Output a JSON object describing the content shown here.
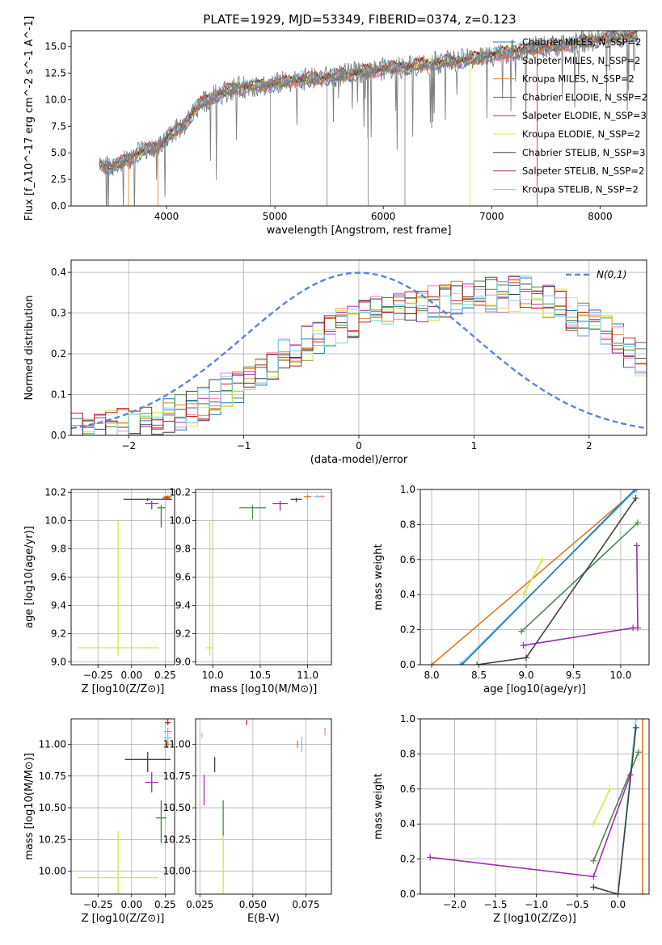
{
  "figure": {
    "title": "PLATE=1929, MJD=53349, FIBERID=0374, z=0.123"
  },
  "chart_data": [
    {
      "id": "spectrum",
      "type": "line",
      "xlabel": "wavelength [Angstrom, rest frame]",
      "ylabel": "Flux [f_λ10^-17 erg cm^-2 s^-1 A^-1]",
      "xlim": [
        3120,
        8430
      ],
      "ylim": [
        0,
        16.5
      ],
      "xticks": [
        4000,
        5000,
        6000,
        7000,
        8000
      ],
      "yticks": [
        0.0,
        2.5,
        5.0,
        7.5,
        10.0,
        12.5,
        15.0
      ],
      "grid": false,
      "legend_position": "top-right",
      "data_color": "#808080",
      "legend": [
        {
          "label": "Chabrier MILES, N_SSP=2",
          "color": "#1f77b4"
        },
        {
          "label": "Salpeter MILES, N_SSP=2",
          "color": "#ff7fbf"
        },
        {
          "label": "Kroupa MILES, N_SSP=2",
          "color": "#e07b1f"
        },
        {
          "label": "Chabrier ELODIE, N_SSP=2",
          "color": "#4a8a4a"
        },
        {
          "label": "Salpeter ELODIE, N_SSP=3",
          "color": "#9b30b0"
        },
        {
          "label": "Kroupa ELODIE, N_SSP=2",
          "color": "#d4e84a"
        },
        {
          "label": "Chabrier STELIB, N_SSP=3",
          "color": "#404040"
        },
        {
          "label": "Salpeter STELIB, N_SSP=2",
          "color": "#c0201f"
        },
        {
          "label": "Kroupa STELIB, N_SSP=2",
          "color": "#76d0e0"
        }
      ],
      "series_anchors": {
        "x": [
          3380,
          3500,
          3650,
          3800,
          3950,
          4050,
          4150,
          4300,
          4450,
          4600,
          4800,
          5000,
          5200,
          5400,
          5600,
          5800,
          6000,
          6200,
          6400,
          6600,
          6800,
          7000,
          7200,
          7400,
          7600,
          7800,
          8000,
          8200
        ],
        "y": [
          4.0,
          3.6,
          4.5,
          5.2,
          5.8,
          6.9,
          7.5,
          9.5,
          10.4,
          11.0,
          11.3,
          11.5,
          11.9,
          12.0,
          12.3,
          12.6,
          12.9,
          13.1,
          13.4,
          13.6,
          13.8,
          14.2,
          14.6,
          14.9,
          15.1,
          15.4,
          15.7,
          16.0
        ]
      }
    },
    {
      "id": "residuals",
      "type": "line",
      "xlabel": "(data-model)/error",
      "ylabel": "Normed distribution",
      "xlim": [
        -2.5,
        2.5
      ],
      "ylim": [
        0,
        0.43
      ],
      "xticks": [
        -2,
        -1,
        0,
        1,
        2
      ],
      "yticks": [
        0.0,
        0.1,
        0.2,
        0.3,
        0.4
      ],
      "grid": true,
      "legend_position": "top-right",
      "gaussian_label": "N(0,1)",
      "gaussian_color": "#5b86d6",
      "hist_anchors": {
        "x": [
          -2.5,
          -2.0,
          -1.5,
          -1.0,
          -0.5,
          0.0,
          0.5,
          1.0,
          1.5,
          2.0,
          2.5
        ],
        "y": [
          0.01,
          0.025,
          0.06,
          0.13,
          0.22,
          0.29,
          0.32,
          0.34,
          0.35,
          0.28,
          0.18
        ]
      }
    },
    {
      "id": "age-vs-Z",
      "type": "scatter",
      "xlabel": "Z [log10(Z/Z⊙)]",
      "ylabel": "age  [log10(age/yr)]",
      "xlim": [
        -0.45,
        0.32
      ],
      "ylim": [
        8.98,
        10.22
      ],
      "xticks": [
        -0.25,
        0.0,
        0.25
      ],
      "yticks": [
        9.0,
        9.2,
        9.4,
        9.6,
        9.8,
        10.0,
        10.2
      ],
      "grid": true,
      "points": [
        {
          "x": -0.1,
          "y": 9.1,
          "xerr": 0.3,
          "yerr_lo": 0.06,
          "yerr_hi": 0.9,
          "color": "#d4e84a"
        },
        {
          "x": 0.15,
          "y": 10.12,
          "xerr": 0.05,
          "yerr_lo": 0.04,
          "yerr_hi": 0.02,
          "color": "#9b30b0"
        },
        {
          "x": 0.22,
          "y": 10.09,
          "xerr": 0.03,
          "yerr_lo": 0.14,
          "yerr_hi": 0.02,
          "color": "#4a8a4a"
        },
        {
          "x": 0.12,
          "y": 10.15,
          "xerr": 0.18,
          "yerr_lo": 0.01,
          "yerr_hi": 0.01,
          "color": "#404040"
        },
        {
          "x": 0.27,
          "y": 10.17,
          "xerr": 0.03,
          "yerr_lo": 0.02,
          "yerr_hi": 0.01,
          "color": "#e07b1f"
        },
        {
          "x": 0.26,
          "y": 10.16,
          "xerr": 0.03,
          "yerr_lo": 0.01,
          "yerr_hi": 0.01,
          "color": "#c0201f"
        }
      ]
    },
    {
      "id": "age-vs-mass",
      "type": "scatter",
      "xlabel": "mass [log10(M/M⊙)]",
      "ylabel": "",
      "xlim": [
        9.82,
        11.25
      ],
      "ylim": [
        8.98,
        10.22
      ],
      "xticks": [
        10.0,
        10.5,
        11.0
      ],
      "yticks": [
        9.0,
        9.2,
        9.4,
        9.6,
        9.8,
        10.0,
        10.2
      ],
      "grid": true,
      "points": [
        {
          "x": 9.97,
          "y": 9.1,
          "xerr": 0.04,
          "yerr_lo": 0.06,
          "yerr_hi": 0.9,
          "color": "#d4e84a"
        },
        {
          "x": 10.42,
          "y": 10.09,
          "xerr": 0.14,
          "yerr_lo": 0.08,
          "yerr_hi": 0.02,
          "color": "#4a8a4a"
        },
        {
          "x": 10.71,
          "y": 10.12,
          "xerr": 0.08,
          "yerr_lo": 0.05,
          "yerr_hi": 0.02,
          "color": "#9b30b0"
        },
        {
          "x": 10.88,
          "y": 10.15,
          "xerr": 0.06,
          "yerr_lo": 0.02,
          "yerr_hi": 0.01,
          "color": "#404040"
        },
        {
          "x": 11.0,
          "y": 10.17,
          "xerr": 0.04,
          "yerr_lo": 0.01,
          "yerr_hi": 0.01,
          "color": "#e07b1f"
        },
        {
          "x": 11.1,
          "y": 10.17,
          "xerr": 0.04,
          "yerr_lo": 0.01,
          "yerr_hi": 0.01,
          "color": "#76d0e0"
        },
        {
          "x": 11.15,
          "y": 10.17,
          "xerr": 0.03,
          "yerr_lo": 0.01,
          "yerr_hi": 0.01,
          "color": "#ff7fbf"
        }
      ]
    },
    {
      "id": "massweight-vs-age",
      "type": "line",
      "xlabel": "age  [log10(age/yr)]",
      "ylabel": "mass weight",
      "xlim": [
        7.88,
        10.3
      ],
      "ylim": [
        0,
        1.0
      ],
      "xticks": [
        8.0,
        8.5,
        9.0,
        9.5,
        10.0
      ],
      "yticks": [
        0.0,
        0.2,
        0.4,
        0.6,
        0.8,
        1.0
      ],
      "grid": true,
      "series": [
        {
          "color": "#e07b1f",
          "x": [
            8.0,
            10.17
          ],
          "y": [
            0.0,
            1.0
          ]
        },
        {
          "color": "#76d0e0",
          "x": [
            8.3,
            10.17
          ],
          "y": [
            0.0,
            1.0
          ]
        },
        {
          "color": "#1f77b4",
          "x": [
            8.32,
            10.15
          ],
          "y": [
            0.0,
            1.0
          ]
        },
        {
          "color": "#d4e84a",
          "x": [
            8.97,
            9.17
          ],
          "y": [
            0.4,
            0.6
          ]
        },
        {
          "color": "#4a8a4a",
          "x": [
            8.95,
            10.18
          ],
          "y": [
            0.19,
            0.81
          ]
        },
        {
          "color": "#404040",
          "x": [
            8.48,
            9.0,
            10.16
          ],
          "y": [
            0.0,
            0.04,
            0.95
          ]
        },
        {
          "color": "#9b30b0",
          "x": [
            8.97,
            10.13,
            10.18,
            10.17
          ],
          "y": [
            0.11,
            0.21,
            0.21,
            0.68
          ]
        }
      ]
    },
    {
      "id": "mass-vs-Z",
      "type": "scatter",
      "xlabel": "Z [log10(Z/Z⊙)]",
      "ylabel": "mass [log10(M/M⊙)]",
      "xlim": [
        -0.45,
        0.32
      ],
      "ylim": [
        9.82,
        11.2
      ],
      "xticks": [
        -0.25,
        0.0,
        0.25
      ],
      "yticks": [
        10.0,
        10.25,
        10.5,
        10.75,
        11.0
      ],
      "grid": true,
      "points": [
        {
          "x": -0.1,
          "y": 9.95,
          "xerr": 0.3,
          "yerr_lo": 0.15,
          "yerr_hi": 0.37,
          "color": "#d4e84a"
        },
        {
          "x": 0.15,
          "y": 10.7,
          "xerr": 0.05,
          "yerr_lo": 0.08,
          "yerr_hi": 0.08,
          "color": "#9b30b0"
        },
        {
          "x": 0.22,
          "y": 10.42,
          "xerr": 0.04,
          "yerr_lo": 0.2,
          "yerr_hi": 0.14,
          "color": "#4a8a4a"
        },
        {
          "x": 0.12,
          "y": 10.88,
          "xerr": 0.17,
          "yerr_lo": 0.1,
          "yerr_hi": 0.06,
          "color": "#404040"
        },
        {
          "x": 0.27,
          "y": 11.0,
          "xerr": 0.03,
          "yerr_lo": 0.03,
          "yerr_hi": 0.03,
          "color": "#e07b1f"
        },
        {
          "x": 0.27,
          "y": 11.05,
          "xerr": 0.03,
          "yerr_lo": 0.03,
          "yerr_hi": 0.03,
          "color": "#76d0e0"
        },
        {
          "x": 0.27,
          "y": 11.1,
          "xerr": 0.03,
          "yerr_lo": 0.03,
          "yerr_hi": 0.03,
          "color": "#ff7fbf"
        },
        {
          "x": 0.27,
          "y": 11.17,
          "xerr": 0.02,
          "yerr_lo": 0.02,
          "yerr_hi": 0.03,
          "color": "#c0201f"
        }
      ]
    },
    {
      "id": "mass-vs-ebv",
      "type": "scatter",
      "xlabel": "E(B-V)",
      "ylabel": "",
      "xlim": [
        0.023,
        0.087
      ],
      "ylim": [
        9.82,
        11.2
      ],
      "xticks": [
        0.025,
        0.05,
        0.075
      ],
      "yticks": [
        10.0,
        10.25,
        10.5,
        10.75,
        11.0
      ],
      "grid": true,
      "points": [
        {
          "x": 0.036,
          "y": 9.95,
          "xerr": 0.0,
          "yerr_lo": 0.15,
          "yerr_hi": 0.37,
          "color": "#d4e84a"
        },
        {
          "x": 0.027,
          "y": 10.64,
          "xerr": 0.0,
          "yerr_lo": 0.12,
          "yerr_hi": 0.12,
          "color": "#9b30b0"
        },
        {
          "x": 0.036,
          "y": 10.42,
          "xerr": 0.0,
          "yerr_lo": 0.14,
          "yerr_hi": 0.14,
          "color": "#4a8a4a"
        },
        {
          "x": 0.032,
          "y": 10.84,
          "xerr": 0.0,
          "yerr_lo": 0.06,
          "yerr_hi": 0.06,
          "color": "#404040"
        },
        {
          "x": 0.071,
          "y": 11.0,
          "xerr": 0.0,
          "yerr_lo": 0.03,
          "yerr_hi": 0.03,
          "color": "#e07b1f"
        },
        {
          "x": 0.073,
          "y": 11.0,
          "xerr": 0.0,
          "yerr_lo": 0.06,
          "yerr_hi": 0.06,
          "color": "#76d0e0"
        },
        {
          "x": 0.084,
          "y": 11.1,
          "xerr": 0.0,
          "yerr_lo": 0.03,
          "yerr_hi": 0.03,
          "color": "#ff7fbf"
        },
        {
          "x": 0.047,
          "y": 11.17,
          "xerr": 0.0,
          "yerr_lo": 0.02,
          "yerr_hi": 0.02,
          "color": "#c0201f"
        },
        {
          "x": 0.026,
          "y": 11.07,
          "xerr": 0.0,
          "yerr_lo": 0.02,
          "yerr_hi": 0.02,
          "color": "#76d0e0"
        }
      ]
    },
    {
      "id": "massweight-vs-Z",
      "type": "line",
      "xlabel": "Z [log10(Z/Z⊙)]",
      "ylabel": "mass weight",
      "xlim": [
        -2.42,
        0.38
      ],
      "ylim": [
        0,
        1.0
      ],
      "xticks": [
        -2.0,
        -1.5,
        -1.0,
        -0.5,
        0.0
      ],
      "yticks": [
        0.0,
        0.2,
        0.4,
        0.6,
        0.8,
        1.0
      ],
      "grid": true,
      "series": [
        {
          "color": "#e07b1f",
          "x": [
            0.3,
            0.3
          ],
          "y": [
            0.0,
            1.0
          ]
        },
        {
          "color": "#76d0e0",
          "x": [
            0.0,
            0.22
          ],
          "y": [
            0.0,
            1.0
          ]
        },
        {
          "color": "#d4e84a",
          "x": [
            -0.3,
            -0.1
          ],
          "y": [
            0.4,
            0.6
          ]
        },
        {
          "color": "#4a8a4a",
          "x": [
            -0.3,
            0.25
          ],
          "y": [
            0.19,
            0.81
          ]
        },
        {
          "color": "#404040",
          "x": [
            -0.3,
            0.0,
            0.22
          ],
          "y": [
            0.04,
            0.0,
            0.95
          ]
        },
        {
          "color": "#9b30b0",
          "x": [
            -2.3,
            -0.3,
            0.15
          ],
          "y": [
            0.21,
            0.1,
            0.68
          ]
        }
      ]
    }
  ]
}
